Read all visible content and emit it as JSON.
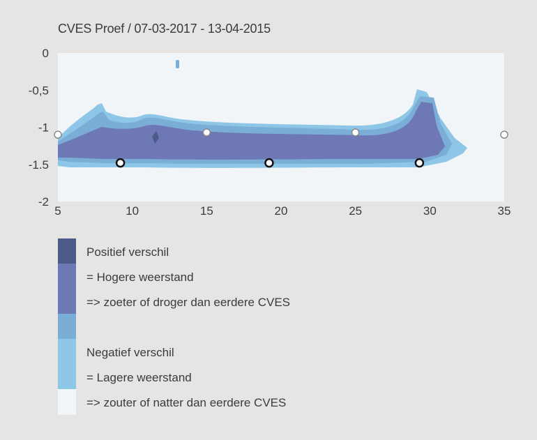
{
  "chart_data": {
    "type": "heatmap",
    "title": "CVES Proef / 07-03-2017 - 13-04-2015",
    "xlabel": "",
    "ylabel": "",
    "xlim": [
      5,
      35
    ],
    "ylim": [
      -2,
      0
    ],
    "x_ticks": [
      "5",
      "10",
      "15",
      "20",
      "25",
      "30",
      "35"
    ],
    "y_ticks": [
      "0",
      "-0,5",
      "-1",
      "-1.5",
      "-2"
    ],
    "grid": false,
    "markers_top": [
      {
        "x": 5,
        "y": -1.1
      },
      {
        "x": 15,
        "y": -1.07
      },
      {
        "x": 25,
        "y": -1.07
      },
      {
        "x": 35,
        "y": -1.1
      }
    ],
    "markers_bottom": [
      {
        "x": 9.2,
        "y": -1.48
      },
      {
        "x": 19.2,
        "y": -1.48
      },
      {
        "x": 29.3,
        "y": -1.48
      }
    ],
    "colors": {
      "strong_positive": "#4a5b87",
      "positive": "#6e78b4",
      "mid": "#7aaed6",
      "negative": "#8dc6e6",
      "strong_negative": "#f1f5f7"
    }
  },
  "legend": {
    "items": [
      {
        "label": "Positief verschil",
        "color": "#4a5b87"
      },
      {
        "label": "= Hogere weerstand",
        "color": "#6e78b4"
      },
      {
        "label": "=> zoeter of droger dan eerdere CVES",
        "color": "#6e78b4"
      },
      {
        "label": "",
        "color": "#7aaed6"
      },
      {
        "label": "Negatief verschil",
        "color": "#8dc6e6"
      },
      {
        "label": "= Lagere weerstand",
        "color": "#8dc6e6"
      },
      {
        "label": "=> zouter of natter dan eerdere CVES",
        "color": "#f1f5f7"
      }
    ]
  }
}
